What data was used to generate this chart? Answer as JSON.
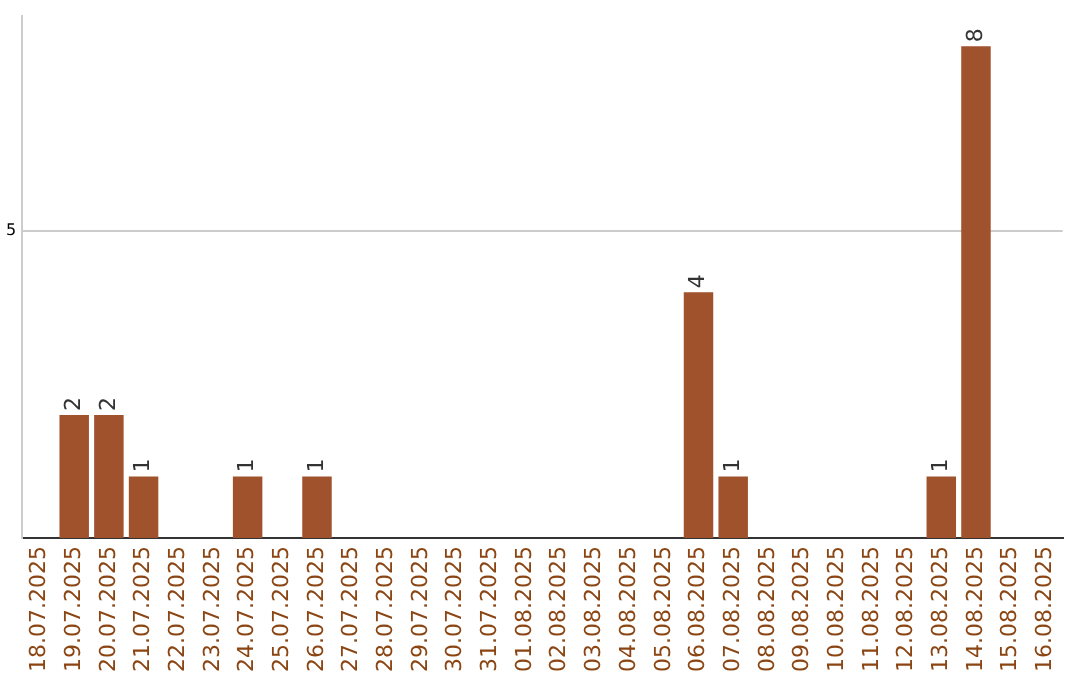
{
  "chart_data": {
    "type": "bar",
    "categories": [
      "18.07.2025",
      "19.07.2025",
      "20.07.2025",
      "21.07.2025",
      "22.07.2025",
      "23.07.2025",
      "24.07.2025",
      "25.07.2025",
      "26.07.2025",
      "27.07.2025",
      "28.07.2025",
      "29.07.2025",
      "30.07.2025",
      "31.07.2025",
      "01.08.2025",
      "02.08.2025",
      "03.08.2025",
      "04.08.2025",
      "05.08.2025",
      "06.08.2025",
      "07.08.2025",
      "08.08.2025",
      "09.08.2025",
      "10.08.2025",
      "11.08.2025",
      "12.08.2025",
      "13.08.2025",
      "14.08.2025",
      "15.08.2025",
      "16.08.2025"
    ],
    "values": [
      0,
      2,
      2,
      1,
      0,
      0,
      1,
      0,
      1,
      0,
      0,
      0,
      0,
      0,
      0,
      0,
      0,
      0,
      0,
      4,
      1,
      0,
      0,
      0,
      0,
      0,
      1,
      8,
      0,
      0
    ],
    "value_labels": [
      null,
      "2",
      "2",
      "1",
      null,
      null,
      "1",
      null,
      "1",
      null,
      null,
      null,
      null,
      null,
      null,
      null,
      null,
      null,
      null,
      "4",
      "1",
      null,
      null,
      null,
      null,
      null,
      "1",
      "8",
      null,
      null
    ],
    "color": "#a0522d",
    "ylim": [
      0,
      8.5
    ],
    "yticks": [
      5
    ],
    "grid": "y"
  }
}
